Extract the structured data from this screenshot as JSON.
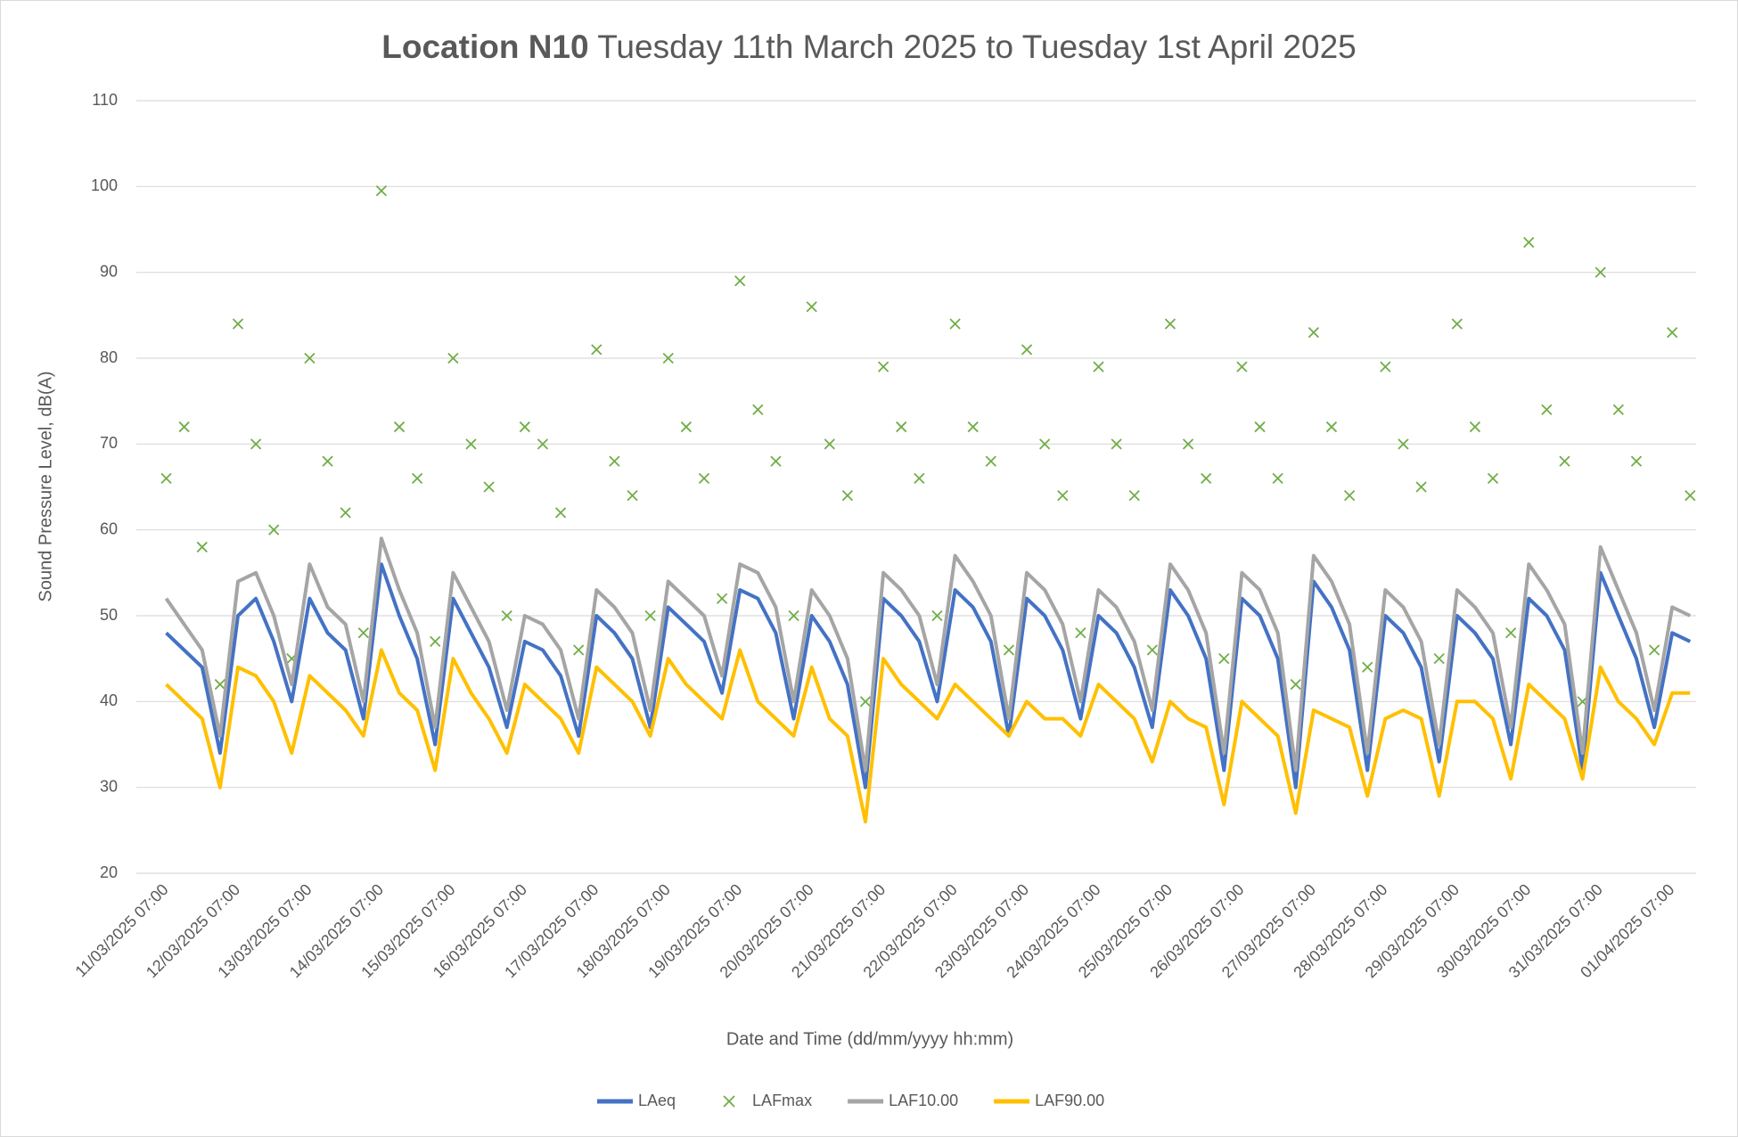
{
  "chart_data": {
    "type": "line",
    "title_bold": "Location N10",
    "title": " Tuesday 11th March 2025 to Tuesday 1st April 2025",
    "x_label": "Date and Time (dd/mm/yyyy hh:mm)",
    "y_label": "Sound Pressure Level, dB(A)",
    "ylim": [
      20,
      110
    ],
    "yticks": [
      20,
      30,
      40,
      50,
      60,
      70,
      80,
      90,
      100,
      110
    ],
    "grid": true,
    "xlim": [
      "10/03/2025 21:00",
      "01/04/2025 15:00"
    ],
    "xticks": [
      "11/03/2025 07:00",
      "12/03/2025 07:00",
      "13/03/2025 07:00",
      "14/03/2025 07:00",
      "15/03/2025 07:00",
      "16/03/2025 07:00",
      "17/03/2025 07:00",
      "18/03/2025 07:00",
      "19/03/2025 07:00",
      "20/03/2025 07:00",
      "21/03/2025 07:00",
      "22/03/2025 07:00",
      "23/03/2025 07:00",
      "24/03/2025 07:00",
      "25/03/2025 07:00",
      "26/03/2025 07:00",
      "27/03/2025 07:00",
      "28/03/2025 07:00",
      "29/03/2025 07:00",
      "30/03/2025 07:00",
      "31/03/2025 07:00",
      "01/04/2025 07:00"
    ],
    "x": [
      "11/03/2025 07:00",
      "11/03/2025 13:00",
      "11/03/2025 19:00",
      "12/03/2025 01:00",
      "12/03/2025 07:00",
      "12/03/2025 13:00",
      "12/03/2025 19:00",
      "13/03/2025 01:00",
      "13/03/2025 07:00",
      "13/03/2025 13:00",
      "13/03/2025 19:00",
      "14/03/2025 01:00",
      "14/03/2025 07:00",
      "14/03/2025 13:00",
      "14/03/2025 19:00",
      "15/03/2025 01:00",
      "15/03/2025 07:00",
      "15/03/2025 13:00",
      "15/03/2025 19:00",
      "16/03/2025 01:00",
      "16/03/2025 07:00",
      "16/03/2025 13:00",
      "16/03/2025 19:00",
      "17/03/2025 01:00",
      "17/03/2025 07:00",
      "17/03/2025 13:00",
      "17/03/2025 19:00",
      "18/03/2025 01:00",
      "18/03/2025 07:00",
      "18/03/2025 13:00",
      "18/03/2025 19:00",
      "19/03/2025 01:00",
      "19/03/2025 07:00",
      "19/03/2025 13:00",
      "19/03/2025 19:00",
      "20/03/2025 01:00",
      "20/03/2025 07:00",
      "20/03/2025 13:00",
      "20/03/2025 19:00",
      "21/03/2025 01:00",
      "21/03/2025 07:00",
      "21/03/2025 13:00",
      "21/03/2025 19:00",
      "22/03/2025 01:00",
      "22/03/2025 07:00",
      "22/03/2025 13:00",
      "22/03/2025 19:00",
      "23/03/2025 01:00",
      "23/03/2025 07:00",
      "23/03/2025 13:00",
      "23/03/2025 19:00",
      "24/03/2025 01:00",
      "24/03/2025 07:00",
      "24/03/2025 13:00",
      "24/03/2025 19:00",
      "25/03/2025 01:00",
      "25/03/2025 07:00",
      "25/03/2025 13:00",
      "25/03/2025 19:00",
      "26/03/2025 01:00",
      "26/03/2025 07:00",
      "26/03/2025 13:00",
      "26/03/2025 19:00",
      "27/03/2025 01:00",
      "27/03/2025 07:00",
      "27/03/2025 13:00",
      "27/03/2025 19:00",
      "28/03/2025 01:00",
      "28/03/2025 07:00",
      "28/03/2025 13:00",
      "28/03/2025 19:00",
      "29/03/2025 01:00",
      "29/03/2025 07:00",
      "29/03/2025 13:00",
      "29/03/2025 19:00",
      "30/03/2025 01:00",
      "30/03/2025 07:00",
      "30/03/2025 13:00",
      "30/03/2025 19:00",
      "31/03/2025 01:00",
      "31/03/2025 07:00",
      "31/03/2025 13:00",
      "31/03/2025 19:00",
      "01/04/2025 01:00",
      "01/04/2025 07:00",
      "01/04/2025 13:00"
    ],
    "series": [
      {
        "name": "LAFmax",
        "color": "#70ad47",
        "marker": "x",
        "values": [
          66,
          72,
          58,
          42,
          84,
          70,
          60,
          45,
          80,
          68,
          62,
          48,
          99.5,
          72,
          66,
          47,
          80,
          70,
          65,
          50,
          72,
          70,
          62,
          46,
          81,
          68,
          64,
          50,
          80,
          72,
          66,
          52,
          89,
          74,
          68,
          50,
          86,
          70,
          64,
          40,
          79,
          72,
          66,
          50,
          84,
          72,
          68,
          46,
          81,
          70,
          64,
          48,
          79,
          70,
          64,
          46,
          84,
          70,
          66,
          45,
          79,
          72,
          66,
          42,
          83,
          72,
          64,
          44,
          79,
          70,
          65,
          45,
          84,
          72,
          66,
          48,
          93.5,
          74,
          68,
          40,
          90,
          74,
          68,
          46,
          83,
          64
        ]
      },
      {
        "name": "LAeq",
        "color": "#4472c4",
        "values": [
          48,
          46,
          44,
          34,
          50,
          52,
          47,
          40,
          52,
          48,
          46,
          38,
          56,
          50,
          45,
          35,
          52,
          48,
          44,
          37,
          47,
          46,
          43,
          36,
          50,
          48,
          45,
          37,
          51,
          49,
          47,
          41,
          53,
          52,
          48,
          38,
          50,
          47,
          42,
          30,
          52,
          50,
          47,
          40,
          53,
          51,
          47,
          36,
          52,
          50,
          46,
          38,
          50,
          48,
          44,
          37,
          53,
          50,
          45,
          32,
          52,
          50,
          45,
          30,
          54,
          51,
          46,
          32,
          50,
          48,
          44,
          33,
          50,
          48,
          45,
          35,
          52,
          50,
          46,
          32,
          55,
          50,
          45,
          37,
          48,
          47
        ]
      },
      {
        "name": "LAF10.00",
        "color": "#a5a5a5",
        "values": [
          52,
          49,
          46,
          36,
          54,
          55,
          50,
          42,
          56,
          51,
          49,
          40,
          59,
          53,
          48,
          37,
          55,
          51,
          47,
          39,
          50,
          49,
          46,
          38,
          53,
          51,
          48,
          39,
          54,
          52,
          50,
          43,
          56,
          55,
          51,
          40,
          53,
          50,
          45,
          32,
          55,
          53,
          50,
          42,
          57,
          54,
          50,
          38,
          55,
          53,
          49,
          40,
          53,
          51,
          47,
          39,
          56,
          53,
          48,
          34,
          55,
          53,
          48,
          32,
          57,
          54,
          49,
          34,
          53,
          51,
          47,
          35,
          53,
          51,
          48,
          37,
          56,
          53,
          49,
          34,
          58,
          53,
          48,
          39,
          51,
          50
        ]
      },
      {
        "name": "LAF90.00",
        "color": "#ffc000",
        "values": [
          42,
          40,
          38,
          30,
          44,
          43,
          40,
          34,
          43,
          41,
          39,
          36,
          46,
          41,
          39,
          32,
          45,
          41,
          38,
          34,
          42,
          40,
          38,
          34,
          44,
          42,
          40,
          36,
          45,
          42,
          40,
          38,
          46,
          40,
          38,
          36,
          44,
          38,
          36,
          26,
          45,
          42,
          40,
          38,
          42,
          40,
          38,
          36,
          40,
          38,
          38,
          36,
          42,
          40,
          38,
          33,
          40,
          38,
          37,
          28,
          40,
          38,
          36,
          27,
          39,
          38,
          37,
          29,
          38,
          39,
          38,
          29,
          40,
          40,
          38,
          31,
          42,
          40,
          38,
          31,
          44,
          40,
          38,
          35,
          41,
          41
        ]
      }
    ],
    "legend_order": [
      1,
      0,
      2,
      3
    ]
  }
}
